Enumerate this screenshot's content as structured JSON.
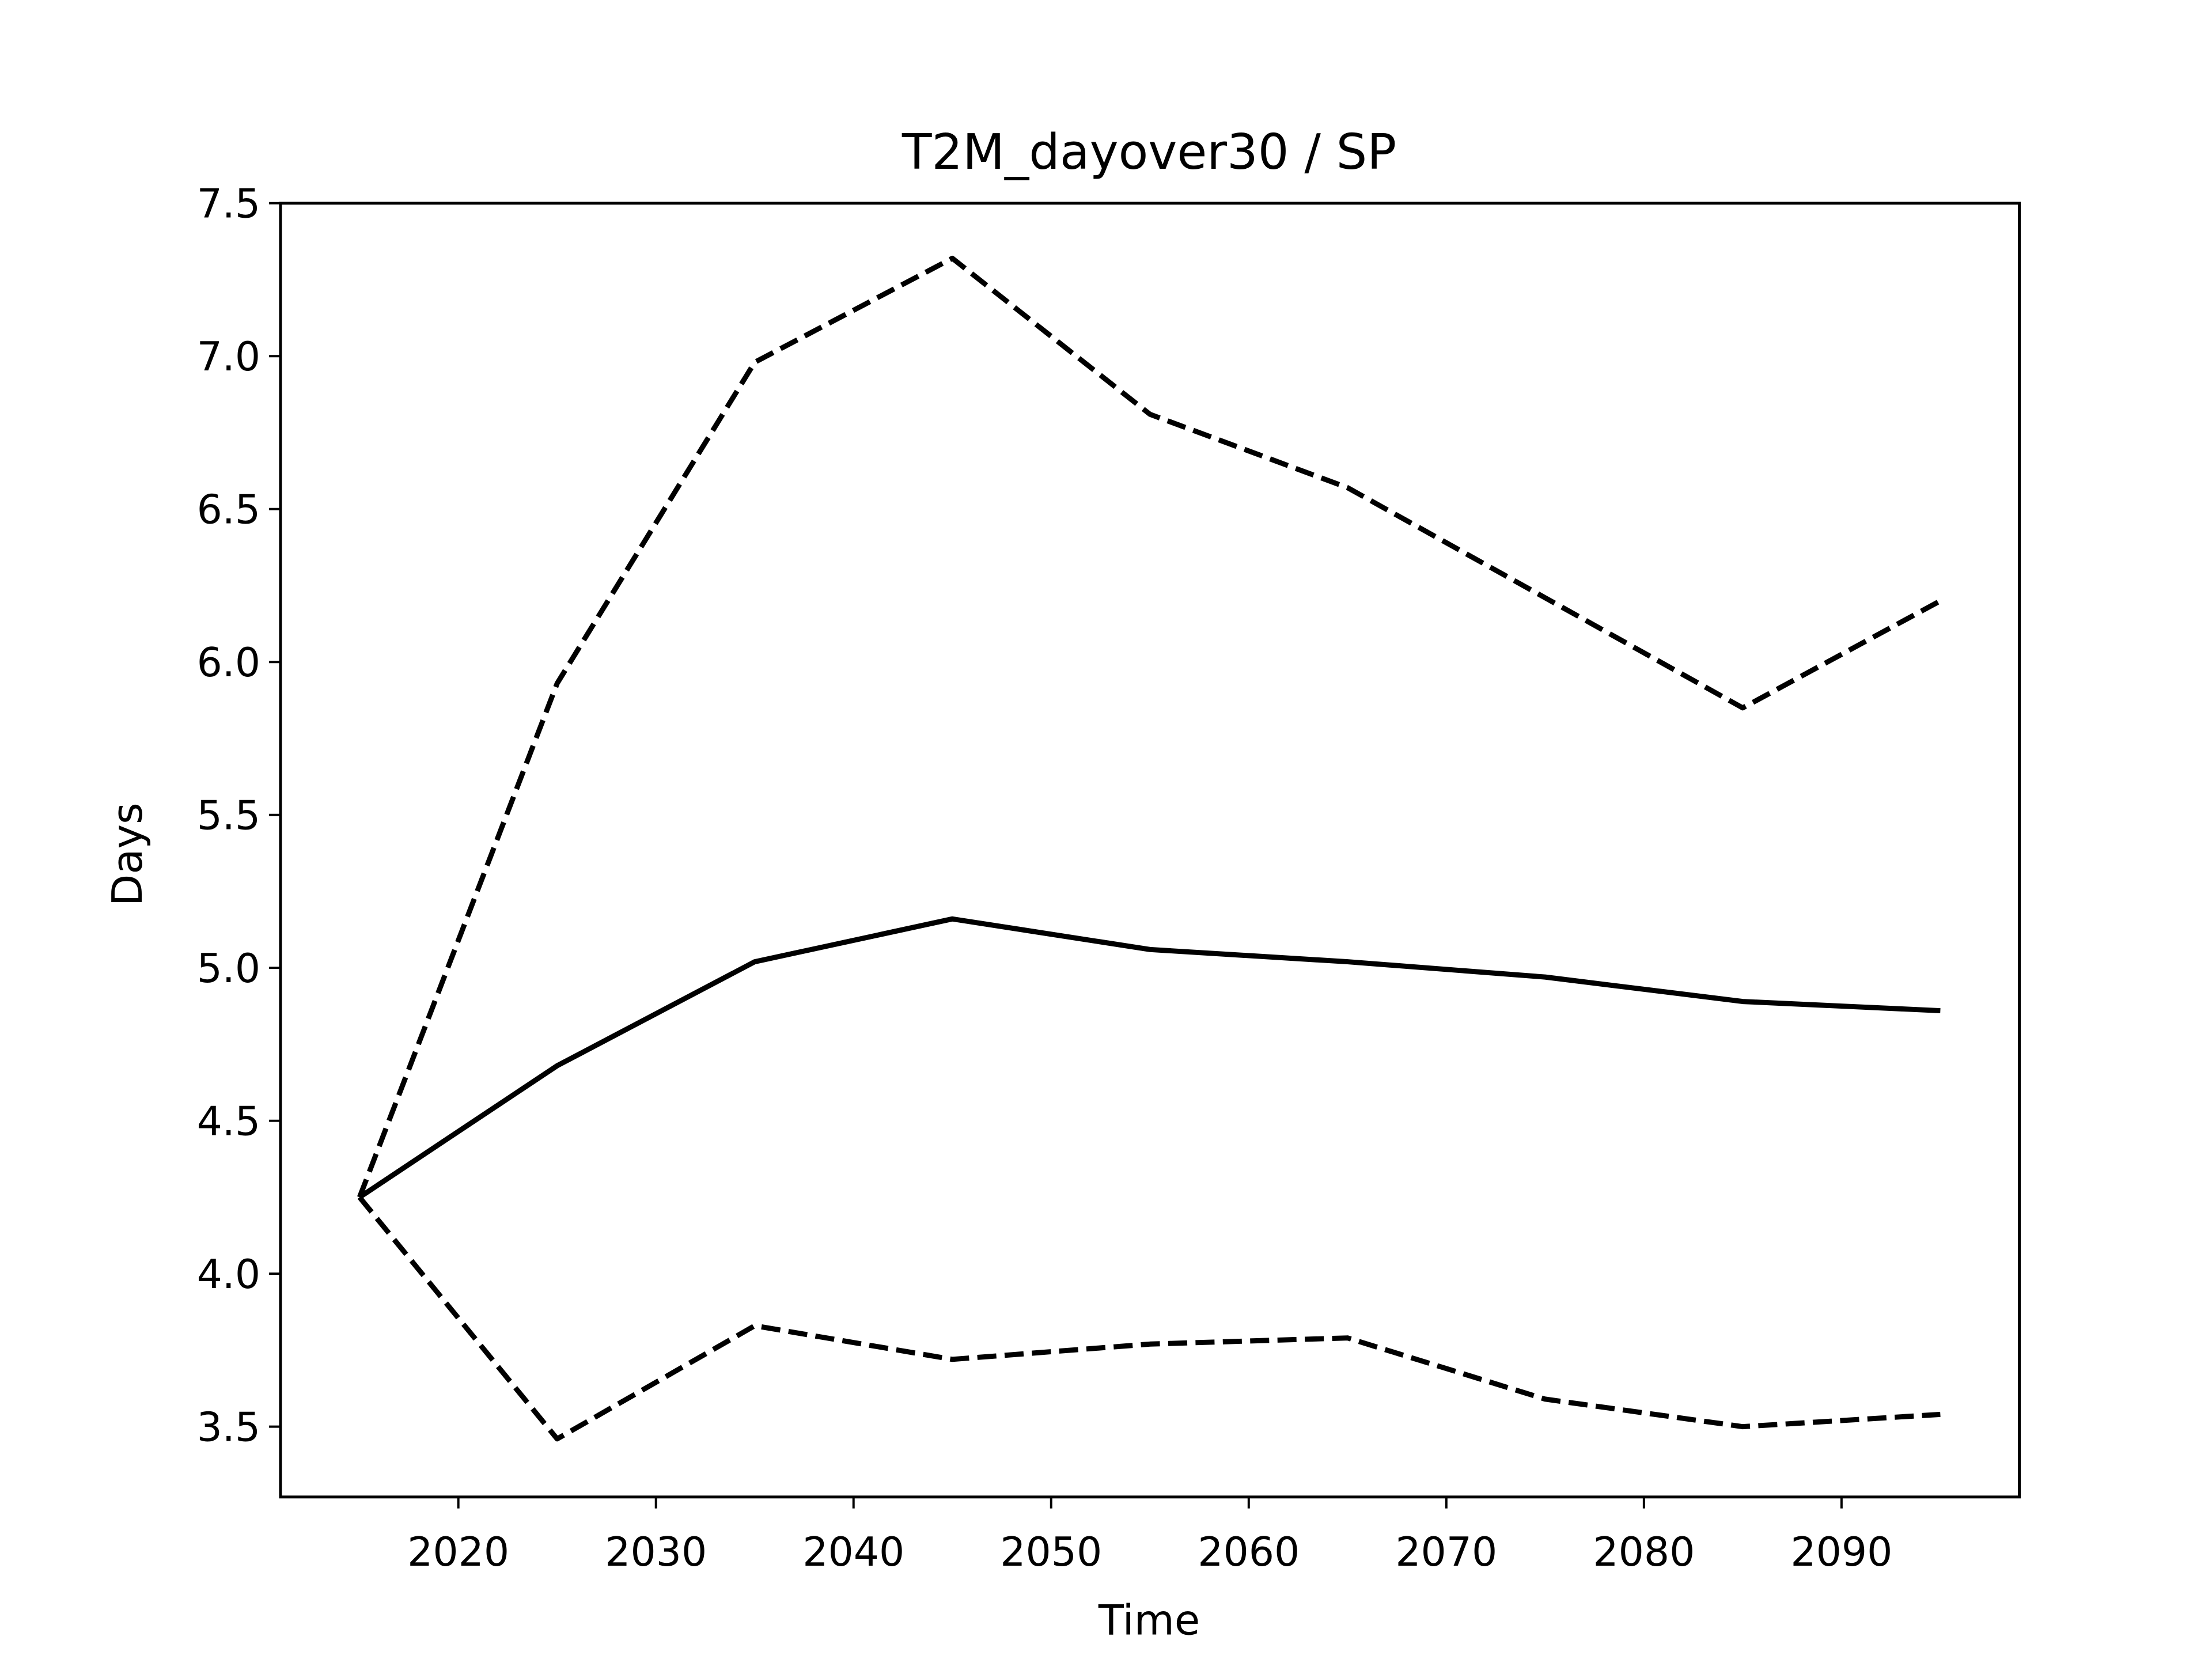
{
  "chart_data": {
    "type": "line",
    "title": "T2M_dayover30 / SP",
    "x_label": "Time",
    "y_label": "Days",
    "x": [
      2015,
      2025,
      2035,
      2045,
      2055,
      2065,
      2075,
      2085,
      2095
    ],
    "series": [
      {
        "color": "#000000",
        "dash": "solid",
        "values": [
          4.25,
          4.68,
          5.02,
          5.16,
          5.06,
          5.02,
          4.97,
          4.89,
          4.86
        ]
      },
      {
        "color": "#000000",
        "dash": "dashed",
        "values": [
          4.25,
          5.93,
          6.98,
          7.32,
          6.81,
          6.57,
          6.21,
          5.85,
          6.2
        ]
      },
      {
        "color": "#000000",
        "dash": "dashed",
        "values": [
          4.25,
          3.46,
          3.83,
          3.72,
          3.77,
          3.79,
          3.59,
          3.5,
          3.54
        ]
      }
    ],
    "xlim": [
      2011,
      2099
    ],
    "ylim": [
      3.27,
      7.5
    ],
    "xticks": [
      2020,
      2030,
      2040,
      2050,
      2060,
      2070,
      2080,
      2090
    ],
    "yticks": [
      3.5,
      {
        "value": 4,
        "label": "4.0"
      },
      4.5,
      {
        "value": 5,
        "label": "5.0"
      },
      5.5,
      {
        "value": 6,
        "label": "6.0"
      },
      6.5,
      {
        "value": 7,
        "label": "7.0"
      },
      7.5
    ],
    "grid": false
  }
}
